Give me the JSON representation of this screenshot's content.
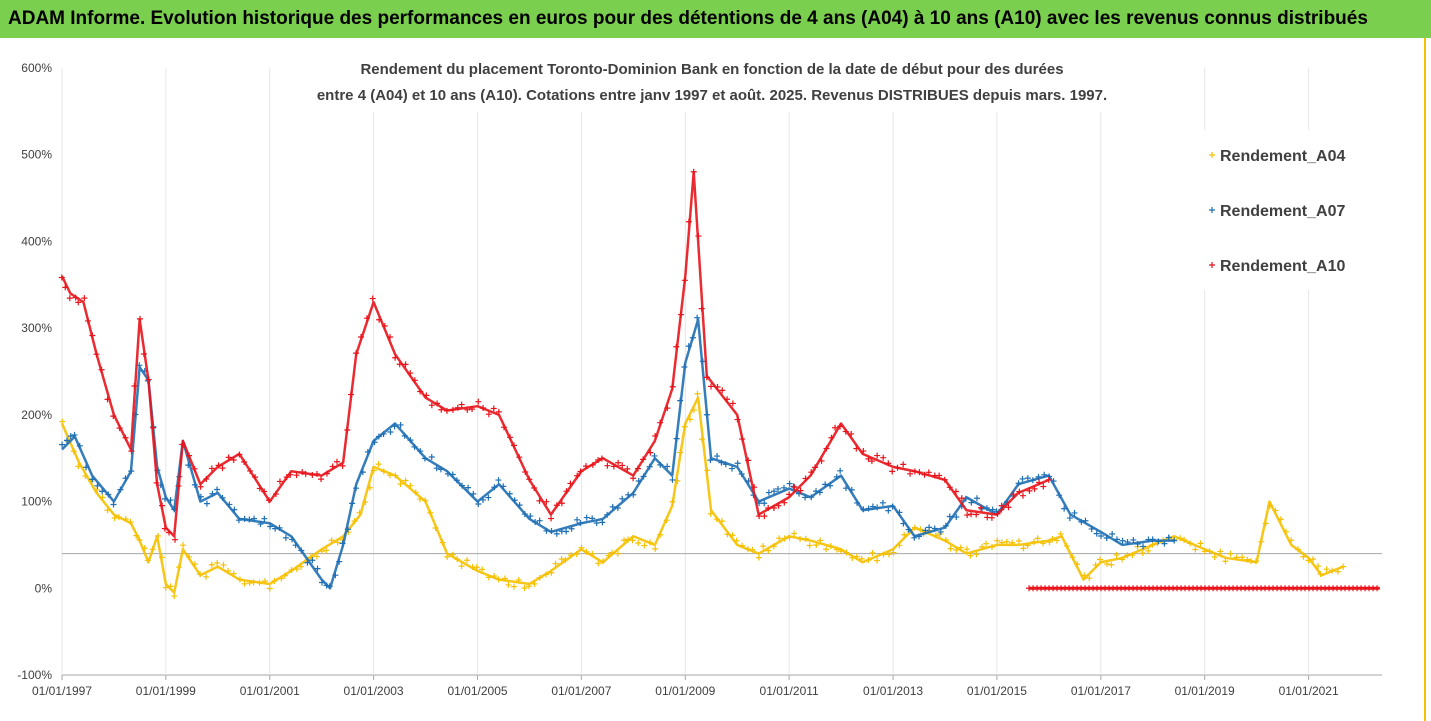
{
  "banner": {
    "text": "ADAM Informe. Evolution historique des performances en euros pour des détentions de 4 ans (A04) à 10 ans (A10) avec les revenus connus distribués",
    "color": "#7bcf4e"
  },
  "chart_data": {
    "type": "scatter",
    "title_line1": "Rendement du placement Toronto-Dominion Bank en fonction de la date de début pour des durées",
    "title_line2": "entre 4 (A04) et 10 ans (A10). Cotations entre janv 1997 et août. 2025. Revenus DISTRIBUES depuis mars. 1997.",
    "ylim": [
      -1.0,
      6.0
    ],
    "xlim": [
      "1997-01-01",
      "2022-06-01"
    ],
    "y_ticks": [
      {
        "value": -1.0,
        "label": "-100%"
      },
      {
        "value": 0.0,
        "label": "0%"
      },
      {
        "value": 1.0,
        "label": "100%"
      },
      {
        "value": 2.0,
        "label": "200%"
      },
      {
        "value": 3.0,
        "label": "300%"
      },
      {
        "value": 4.0,
        "label": "400%"
      },
      {
        "value": 5.0,
        "label": "500%"
      },
      {
        "value": 6.0,
        "label": "600%"
      }
    ],
    "x_ticks": [
      "01/01/1997",
      "01/01/1999",
      "01/01/2001",
      "01/01/2003",
      "01/01/2005",
      "01/01/2007",
      "01/01/2009",
      "01/01/2011",
      "01/01/2013",
      "01/01/2015",
      "01/01/2017",
      "01/01/2019",
      "01/01/2021"
    ],
    "reference_line": 0.4,
    "grid": "vertical",
    "legend_position": "right",
    "series": [
      {
        "name": "Rendement_A04",
        "color": "#f5c000",
        "x": [
          "1997-01-01",
          "1997-05-01",
          "1997-09-01",
          "1998-01-01",
          "1998-05-01",
          "1998-07-01",
          "1998-09-01",
          "1998-11-01",
          "1999-01-01",
          "1999-03-01",
          "1999-05-01",
          "1999-09-01",
          "2000-01-01",
          "2000-06-01",
          "2001-01-01",
          "2001-06-01",
          "2002-01-01",
          "2002-06-01",
          "2002-10-01",
          "2003-01-01",
          "2003-06-01",
          "2004-01-01",
          "2004-06-01",
          "2005-01-01",
          "2005-06-01",
          "2006-01-01",
          "2006-06-01",
          "2007-01-01",
          "2007-06-01",
          "2008-01-01",
          "2008-06-01",
          "2008-10-01",
          "2009-01-01",
          "2009-04-01",
          "2009-07-01",
          "2010-01-01",
          "2010-06-01",
          "2011-01-01",
          "2011-06-01",
          "2012-01-01",
          "2012-06-01",
          "2013-01-01",
          "2013-06-01",
          "2014-01-01",
          "2014-06-01",
          "2015-01-01",
          "2015-06-01",
          "2016-01-01",
          "2016-04-01",
          "2016-09-01",
          "2017-01-01",
          "2017-06-01",
          "2018-01-01",
          "2018-06-01",
          "2019-01-01",
          "2019-06-01",
          "2020-01-01",
          "2020-04-01",
          "2020-09-01",
          "2021-01-01",
          "2021-04-01",
          "2021-09-01"
        ],
        "y": [
          1.9,
          1.45,
          1.1,
          0.85,
          0.75,
          0.55,
          0.3,
          0.6,
          0.05,
          -0.05,
          0.45,
          0.15,
          0.25,
          0.1,
          0.05,
          0.2,
          0.45,
          0.6,
          0.85,
          1.4,
          1.3,
          1.0,
          0.4,
          0.2,
          0.1,
          0.05,
          0.2,
          0.45,
          0.3,
          0.6,
          0.5,
          0.95,
          1.9,
          2.2,
          0.9,
          0.5,
          0.4,
          0.6,
          0.55,
          0.45,
          0.3,
          0.45,
          0.7,
          0.55,
          0.4,
          0.5,
          0.5,
          0.55,
          0.6,
          0.1,
          0.3,
          0.35,
          0.5,
          0.6,
          0.45,
          0.35,
          0.3,
          1.0,
          0.5,
          0.35,
          0.15,
          0.25
        ]
      },
      {
        "name": "Rendement_A07",
        "color": "#1f6fb4",
        "x": [
          "1997-01-01",
          "1997-04-01",
          "1997-08-01",
          "1998-01-01",
          "1998-05-01",
          "1998-07-01",
          "1998-09-01",
          "1998-11-01",
          "1999-01-01",
          "1999-03-01",
          "1999-05-01",
          "1999-09-01",
          "2000-01-01",
          "2000-06-01",
          "2001-01-01",
          "2001-06-01",
          "2002-01-01",
          "2002-03-01",
          "2002-06-01",
          "2002-09-01",
          "2003-01-01",
          "2003-06-01",
          "2004-01-01",
          "2004-06-01",
          "2005-01-01",
          "2005-06-01",
          "2006-01-01",
          "2006-06-01",
          "2007-01-01",
          "2007-06-01",
          "2008-01-01",
          "2008-06-01",
          "2008-10-01",
          "2009-01-01",
          "2009-04-01",
          "2009-07-01",
          "2010-01-01",
          "2010-06-01",
          "2011-01-01",
          "2011-06-01",
          "2012-01-01",
          "2012-06-01",
          "2013-01-01",
          "2013-06-01",
          "2014-01-01",
          "2014-06-01",
          "2015-01-01",
          "2015-06-01",
          "2016-01-01",
          "2016-06-01",
          "2017-01-01",
          "2017-06-01",
          "2018-01-01",
          "2018-06-01"
        ],
        "y": [
          1.6,
          1.75,
          1.3,
          1.0,
          1.35,
          2.55,
          2.4,
          1.4,
          1.05,
          0.9,
          1.7,
          1.0,
          1.1,
          0.8,
          0.75,
          0.6,
          0.1,
          0.0,
          0.5,
          1.2,
          1.7,
          1.9,
          1.5,
          1.35,
          1.0,
          1.2,
          0.8,
          0.65,
          0.75,
          0.8,
          1.1,
          1.5,
          1.3,
          2.6,
          3.1,
          1.5,
          1.4,
          1.0,
          1.15,
          1.05,
          1.3,
          0.9,
          0.95,
          0.6,
          0.7,
          1.05,
          0.85,
          1.2,
          1.3,
          0.85,
          0.65,
          0.5,
          0.55,
          0.55
        ]
      },
      {
        "name": "Rendement_A10",
        "color": "#e8141b",
        "x": [
          "1997-01-01",
          "1997-03-01",
          "1997-06-01",
          "1997-09-01",
          "1998-01-01",
          "1998-05-01",
          "1998-07-01",
          "1998-09-01",
          "1998-11-01",
          "1999-01-01",
          "1999-03-01",
          "1999-05-01",
          "1999-09-01",
          "2000-01-01",
          "2000-06-01",
          "2001-01-01",
          "2001-06-01",
          "2002-01-01",
          "2002-06-01",
          "2002-09-01",
          "2003-01-01",
          "2003-06-01",
          "2004-01-01",
          "2004-06-01",
          "2005-01-01",
          "2005-06-01",
          "2006-01-01",
          "2006-06-01",
          "2007-01-01",
          "2007-06-01",
          "2008-01-01",
          "2008-06-01",
          "2008-10-01",
          "2009-01-01",
          "2009-03-01",
          "2009-06-01",
          "2010-01-01",
          "2010-06-01",
          "2011-01-01",
          "2011-06-01",
          "2012-01-01",
          "2012-06-01",
          "2013-01-01",
          "2013-06-01",
          "2014-01-01",
          "2014-06-01",
          "2015-01-01",
          "2015-06-01",
          "2016-01-01"
        ],
        "y": [
          3.6,
          3.4,
          3.3,
          2.7,
          2.0,
          1.6,
          3.1,
          2.4,
          1.2,
          0.7,
          0.6,
          1.7,
          1.2,
          1.4,
          1.55,
          1.0,
          1.35,
          1.3,
          1.45,
          2.7,
          3.3,
          2.7,
          2.2,
          2.05,
          2.1,
          2.0,
          1.25,
          0.85,
          1.35,
          1.5,
          1.3,
          1.7,
          2.3,
          3.6,
          4.8,
          2.45,
          2.0,
          0.85,
          1.05,
          1.3,
          1.9,
          1.55,
          1.4,
          1.35,
          1.25,
          0.9,
          0.85,
          1.1,
          1.25
        ]
      }
    ],
    "flat_segment": {
      "series": "Rendement_A10",
      "from": "2015-08-15",
      "to": "2022-05-15",
      "y": 0.0
    }
  }
}
